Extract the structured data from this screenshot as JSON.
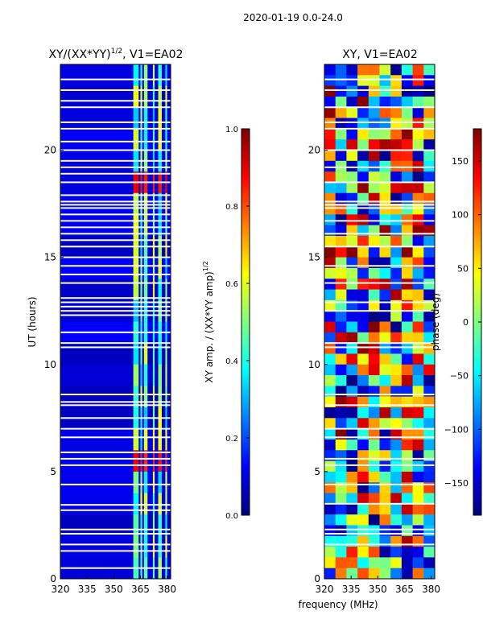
{
  "suptitle": "2020-01-19 0.0-24.0",
  "shared_xlabel": "frequency (MHz)",
  "colors": {
    "jet": [
      "#00007f",
      "#0000ff",
      "#007fff",
      "#00ffff",
      "#7fff7f",
      "#ffff00",
      "#ff7f00",
      "#ff0000",
      "#7f0000"
    ]
  },
  "chart_data": [
    {
      "type": "heatmap",
      "title_main": "XY/(XX*YY)",
      "title_sup": "1/2",
      "title_suffix": ", V1=EA02",
      "ylabel": "UT (hours)",
      "xlim": [
        320,
        382
      ],
      "ylim": [
        0,
        24
      ],
      "xticks": [
        320,
        335,
        350,
        365,
        380
      ],
      "yticks": [
        0,
        5,
        10,
        15,
        20
      ],
      "colorbar": {
        "label_main": "XY amp. / (XX*YY amp)",
        "label_sup": "1/2",
        "range": [
          0.0,
          1.0
        ],
        "ticks": [
          0.0,
          0.2,
          0.4,
          0.6,
          0.8,
          1.0
        ],
        "tick_labels": [
          "0.0",
          "0.2",
          "0.4",
          "0.6",
          "0.8",
          "1.0"
        ]
      },
      "bright_channel_bands_mhz": [
        [
          361,
          364
        ],
        [
          365,
          366
        ],
        [
          367,
          369
        ],
        [
          372,
          373
        ],
        [
          375,
          377
        ],
        [
          379,
          380
        ]
      ],
      "flagged_ut_hours": [
        0.5,
        1.3,
        1.6,
        2.1,
        2.3,
        3.2,
        3.45,
        4.4,
        5.3,
        5.6,
        5.9,
        6.6,
        7.0,
        7.5,
        8.1,
        8.25,
        8.6,
        10.8,
        11.0,
        11.5,
        12.3,
        12.5,
        12.7,
        12.9,
        13.1,
        13.8,
        14.2,
        14.6,
        15.0,
        15.5,
        15.8,
        16.1,
        16.4,
        16.7,
        17.0,
        17.3,
        17.45,
        17.6,
        17.9,
        18.5,
        18.9,
        19.2,
        19.5,
        20.0,
        20.4,
        21.0,
        21.3,
        22.0,
        22.3,
        22.8,
        23.3
      ]
    },
    {
      "type": "heatmap",
      "title": "XY, V1=EA02",
      "xlim": [
        320,
        382
      ],
      "ylim": [
        0,
        24
      ],
      "xticks": [
        320,
        335,
        350,
        365,
        380
      ],
      "yticks": [
        0,
        5,
        10,
        15,
        20
      ],
      "colorbar": {
        "label": "phase (deg)",
        "range": [
          -180,
          180
        ],
        "ticks": [
          -150,
          -100,
          -50,
          0,
          50,
          100,
          150
        ],
        "tick_labels": [
          "−150",
          "−100",
          "−50",
          "0",
          "50",
          "100",
          "150"
        ]
      },
      "flagged_ut_hours": [
        1.6,
        2.1,
        2.3,
        3.5,
        4.4,
        5.3,
        5.6,
        6.6,
        7.0,
        8.1,
        8.6,
        10.8,
        11.0,
        12.5,
        12.9,
        13.8,
        14.6,
        15.5,
        16.1,
        16.7,
        17.3,
        17.45,
        17.6,
        18.5,
        19.2,
        20.0,
        21.0,
        21.3,
        22.0,
        22.8,
        23.3
      ]
    }
  ]
}
